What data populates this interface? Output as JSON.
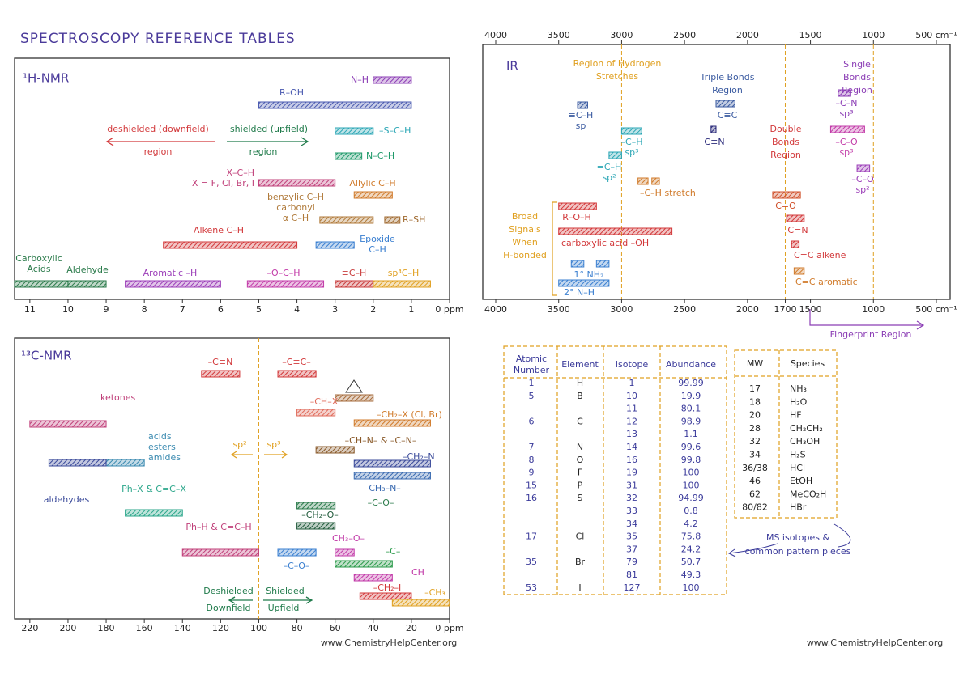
{
  "title": "SPECTROSCOPY REFERENCE TABLES",
  "h_nmr": {
    "title": "¹H-NMR",
    "xlim": [
      0,
      11.4
    ],
    "ticks": [
      11,
      10,
      9,
      8,
      7,
      6,
      5,
      4,
      3,
      2,
      1,
      {
        "value": 0,
        "label": "0 ppm"
      }
    ],
    "annotations": [
      {
        "text": "deshielded (downfield)",
        "color": "#d2383a"
      },
      {
        "text": "region",
        "color": "#d2383a"
      },
      {
        "text": "shielded (upfield)",
        "color": "#1f7a4a"
      },
      {
        "text": "region",
        "color": "#1f7a4a"
      }
    ],
    "bars": [
      {
        "label": "N–H",
        "range": [
          1,
          2
        ],
        "color": "#8b3db5"
      },
      {
        "label": "R–OH",
        "range": [
          1,
          5
        ],
        "color": "#4a5ab0"
      },
      {
        "label": "–S–C–H",
        "range": [
          2,
          3
        ],
        "color": "#2aa6b5"
      },
      {
        "label": "N–C–H",
        "range": [
          2.3,
          3
        ],
        "color": "#1f9a6a"
      },
      {
        "label": [
          "X–C–H",
          "X = F, Cl, Br, I"
        ],
        "range": [
          3,
          5
        ],
        "color": "#c0407a"
      },
      {
        "label": "Allylic C–H",
        "range": [
          1.5,
          2.5
        ],
        "color": "#d07a2a"
      },
      {
        "label": [
          "benzylic C–H",
          "carbonyl",
          "α C–H"
        ],
        "range": [
          2,
          3.4
        ],
        "color": "#b07a3a"
      },
      {
        "label": "R–SH",
        "range": [
          1.3,
          1.7
        ],
        "color": "#a06a30"
      },
      {
        "label": "Alkene C–H",
        "range": [
          4,
          7.5
        ],
        "color": "#d2383a"
      },
      {
        "label": [
          "Epoxide",
          "C–H"
        ],
        "range": [
          2.5,
          3.5
        ],
        "color": "#3a7fd0"
      },
      {
        "label": [
          "Carboxylic",
          "Acids"
        ],
        "range": [
          10,
          11.4
        ],
        "color": "#2a7a4a"
      },
      {
        "label": "Aldehyde",
        "range": [
          9,
          10
        ],
        "color": "#2a7a4a"
      },
      {
        "label": "Aromatic –H",
        "range": [
          6,
          8.5
        ],
        "color": "#9b3db8"
      },
      {
        "label": "–O–C–H",
        "range": [
          3.3,
          5.3
        ],
        "color": "#c23aa8"
      },
      {
        "label": "≡C–H",
        "range": [
          2,
          3
        ],
        "color": "#c83a3a"
      },
      {
        "label": "sp³C–H",
        "range": [
          0.5,
          2
        ],
        "color": "#e0a020"
      }
    ]
  },
  "c_nmr": {
    "title": "¹³C-NMR",
    "xlim": [
      0,
      228
    ],
    "ticks": [
      220,
      200,
      180,
      160,
      140,
      120,
      100,
      80,
      60,
      40,
      20,
      {
        "value": 0,
        "label": "0 ppm"
      }
    ],
    "dividers": [
      100
    ],
    "annotations": [
      {
        "text": "Deshielded",
        "color": "#1f7a4a"
      },
      {
        "text": "Downfield",
        "color": "#1f7a4a"
      },
      {
        "text": "Shielded",
        "color": "#1f7a4a"
      },
      {
        "text": "Upfield",
        "color": "#1f7a4a"
      },
      {
        "text": "sp²",
        "color": "#e0a020"
      },
      {
        "text": "sp³",
        "color": "#e0a020"
      }
    ],
    "bars": [
      {
        "label": "–C≡N",
        "range": [
          110,
          130
        ],
        "color": "#d2383a"
      },
      {
        "label": "–C≡C–",
        "range": [
          70,
          90
        ],
        "color": "#d2383a"
      },
      {
        "range": [
          40,
          60
        ],
        "color": "#a56a3a"
      },
      {
        "label": "ketones",
        "range": [
          180,
          220
        ],
        "color": "#c0407a"
      },
      {
        "label": "–CH₂–X (Cl, Br)",
        "range": [
          10,
          50
        ],
        "color": "#d07a2a"
      },
      {
        "label": "–CH–X",
        "range": [
          60,
          80
        ],
        "color": "#e06a5a"
      },
      {
        "label": "–CH–N– & –C–N–",
        "range": [
          50,
          70
        ],
        "color": "#8a5a2a"
      },
      {
        "label": [
          "acids",
          "esters",
          "amides"
        ],
        "range": [
          160,
          180
        ],
        "color": "#3a8ab0"
      },
      {
        "label": "aldehydes",
        "range": [
          180,
          210
        ],
        "color": "#3a4a9a"
      },
      {
        "label": "–CH₂–N",
        "range": [
          10,
          50
        ],
        "color": "#3a4a9a"
      },
      {
        "label": "CH₃–N–",
        "range": [
          10,
          50
        ],
        "color": "#3a6ab0"
      },
      {
        "label": "Ph–X & C=C–X",
        "range": [
          140,
          170
        ],
        "color": "#2aa68a"
      },
      {
        "label": "–C–O–",
        "range": [
          60,
          80
        ],
        "color": "#2a7a4a"
      },
      {
        "label": "–CH₂–O–",
        "range": [
          60,
          80
        ],
        "color": "#1f5a3a"
      },
      {
        "label": "Ph–H & C=C–H",
        "range": [
          100,
          140
        ],
        "color": "#c0407a"
      },
      {
        "label": "–C–O–",
        "range": [
          70,
          90
        ],
        "color": "#3a7fd0"
      },
      {
        "label": "CH₃–O–",
        "range": [
          50,
          60
        ],
        "color": "#c23aa8"
      },
      {
        "label": "–C–",
        "range": [
          30,
          60
        ],
        "color": "#2a9a4a"
      },
      {
        "label": "CH",
        "range": [
          30,
          50
        ],
        "color": "#c23aa8"
      },
      {
        "label": "–CH₂–I",
        "range": [
          20,
          47
        ],
        "color": "#d2383a"
      },
      {
        "label": "–CH₃",
        "range": [
          0,
          30
        ],
        "color": "#e0a020"
      }
    ]
  },
  "ir": {
    "title": "IR",
    "xlim": [
      4000,
      500
    ],
    "top_ticks": [
      4000,
      3500,
      3000,
      2500,
      2000,
      1500,
      1000,
      {
        "value": 500,
        "label": "500 cm⁻¹"
      }
    ],
    "bottom_ticks": [
      4000,
      3500,
      3000,
      2500,
      2000,
      1700,
      1500,
      1000,
      {
        "value": 500,
        "label": "500 cm⁻¹"
      }
    ],
    "dividers": [
      3000,
      1700,
      1000
    ],
    "annotations": [
      {
        "text": [
          "Region of Hydrogen",
          "Stretches"
        ],
        "color": "#e0a020"
      },
      {
        "text": [
          "Triple Bonds",
          "Region"
        ],
        "color": "#3a5aa0"
      },
      {
        "text": [
          "Double",
          "Bonds",
          "Region"
        ],
        "color": "#d2383a"
      },
      {
        "text": [
          "Single",
          "Bonds",
          "Region"
        ],
        "color": "#8b3db5"
      },
      {
        "text": [
          "Broad",
          "Signals",
          "When",
          "H-bonded"
        ],
        "color": "#e0a020"
      },
      {
        "text": "Fingerprint Region",
        "color": "#8b3db5"
      }
    ],
    "bars": [
      {
        "label": [
          "≡C–H",
          "sp"
        ],
        "range": [
          3270,
          3350
        ],
        "color": "#3a5aa0"
      },
      {
        "label": [
          "–C–H",
          "sp³"
        ],
        "range": [
          2840,
          3000
        ],
        "color": "#2aa6b5"
      },
      {
        "label": [
          "=C–H",
          "sp²"
        ],
        "range": [
          3000,
          3100
        ],
        "color": "#2aa6b5"
      },
      {
        "label": "–C–H stretch",
        "range": [
          2790,
          2870
        ],
        "color": "#d07a2a"
      },
      {
        "range": [
          2700,
          2760
        ],
        "color": "#d07a2a"
      },
      {
        "label": "C≡C",
        "range": [
          2100,
          2250
        ],
        "color": "#3a5aa0"
      },
      {
        "label": "C≡N",
        "range": [
          2250,
          2290
        ],
        "color": "#2a2a7a"
      },
      {
        "label": "C=O",
        "range": [
          1580,
          1800
        ],
        "color": "#d0502a"
      },
      {
        "label": "C=N",
        "range": [
          1550,
          1690
        ],
        "color": "#d2383a"
      },
      {
        "label": "C=C alkene",
        "range": [
          1590,
          1650
        ],
        "color": "#d2383a"
      },
      {
        "label": "C=C aromatic",
        "range": [
          1550,
          1630
        ],
        "color": "#d07a2a"
      },
      {
        "label": [
          "–C–N",
          "sp³"
        ],
        "range": [
          1180,
          1280
        ],
        "color": "#8b3db5"
      },
      {
        "label": [
          "–C–O",
          "sp³"
        ],
        "range": [
          1070,
          1340
        ],
        "color": "#c23aa8"
      },
      {
        "label": [
          "–C–O",
          "sp²"
        ],
        "range": [
          1030,
          1130
        ],
        "color": "#9b3db8"
      },
      {
        "label": "R–O–H",
        "range": [
          3200,
          3500
        ],
        "color": "#d2383a"
      },
      {
        "label": "carboxylic acid –OH",
        "range": [
          2600,
          3500
        ],
        "color": "#d2383a"
      },
      {
        "label": "1° NH₂",
        "range": [
          3300,
          3400
        ],
        "color": "#3a7fd0"
      },
      {
        "range": [
          3100,
          3200
        ],
        "color": "#3a7fd0"
      },
      {
        "label": "2° N–H",
        "range": [
          3100,
          3500
        ],
        "color": "#3a7fd0"
      }
    ]
  },
  "isotopes": {
    "headers": [
      [
        "Atomic",
        "Number"
      ],
      [
        "Element"
      ],
      [
        "Isotope"
      ],
      [
        "Abundance"
      ]
    ],
    "elements": [
      {
        "number": "1",
        "symbol": "H",
        "isotopes": [
          {
            "mass": "1",
            "abundance": "99.99"
          }
        ]
      },
      {
        "number": "5",
        "symbol": "B",
        "isotopes": [
          {
            "mass": "10",
            "abundance": "19.9"
          },
          {
            "mass": "11",
            "abundance": "80.1"
          }
        ]
      },
      {
        "number": "6",
        "symbol": "C",
        "isotopes": [
          {
            "mass": "12",
            "abundance": "98.9"
          },
          {
            "mass": "13",
            "abundance": "1.1"
          }
        ]
      },
      {
        "number": "7",
        "symbol": "N",
        "isotopes": [
          {
            "mass": "14",
            "abundance": "99.6"
          }
        ]
      },
      {
        "number": "8",
        "symbol": "O",
        "isotopes": [
          {
            "mass": "16",
            "abundance": "99.8"
          }
        ]
      },
      {
        "number": "9",
        "symbol": "F",
        "isotopes": [
          {
            "mass": "19",
            "abundance": "100"
          }
        ]
      },
      {
        "number": "15",
        "symbol": "P",
        "isotopes": [
          {
            "mass": "31",
            "abundance": "100"
          }
        ]
      },
      {
        "number": "16",
        "symbol": "S",
        "isotopes": [
          {
            "mass": "32",
            "abundance": "94.99"
          },
          {
            "mass": "33",
            "abundance": "0.8"
          },
          {
            "mass": "34",
            "abundance": "4.2"
          }
        ]
      },
      {
        "number": "17",
        "symbol": "Cl",
        "isotopes": [
          {
            "mass": "35",
            "abundance": "75.8"
          },
          {
            "mass": "37",
            "abundance": "24.2"
          }
        ]
      },
      {
        "number": "35",
        "symbol": "Br",
        "isotopes": [
          {
            "mass": "79",
            "abundance": "50.7"
          },
          {
            "mass": "81",
            "abundance": "49.3"
          }
        ]
      },
      {
        "number": "53",
        "symbol": "I",
        "isotopes": [
          {
            "mass": "127",
            "abundance": "100"
          }
        ]
      }
    ]
  },
  "ms": {
    "headers": [
      "MW",
      "Species"
    ],
    "rows": [
      [
        "17",
        "NH₃"
      ],
      [
        "18",
        "H₂O"
      ],
      [
        "20",
        "HF"
      ],
      [
        "28",
        "CH₂CH₂"
      ],
      [
        "32",
        "CH₃OH"
      ],
      [
        "34",
        "H₂S"
      ],
      [
        "36/38",
        "HCl"
      ],
      [
        "46",
        "EtOH"
      ],
      [
        "62",
        "MeCO₂H"
      ],
      [
        "80/82",
        "HBr"
      ]
    ],
    "note": [
      "MS isotopes &",
      "common pattern pieces"
    ]
  },
  "footers": [
    "www.ChemistryHelpCenter.org",
    "www.ChemistryHelpCenter.org"
  ]
}
